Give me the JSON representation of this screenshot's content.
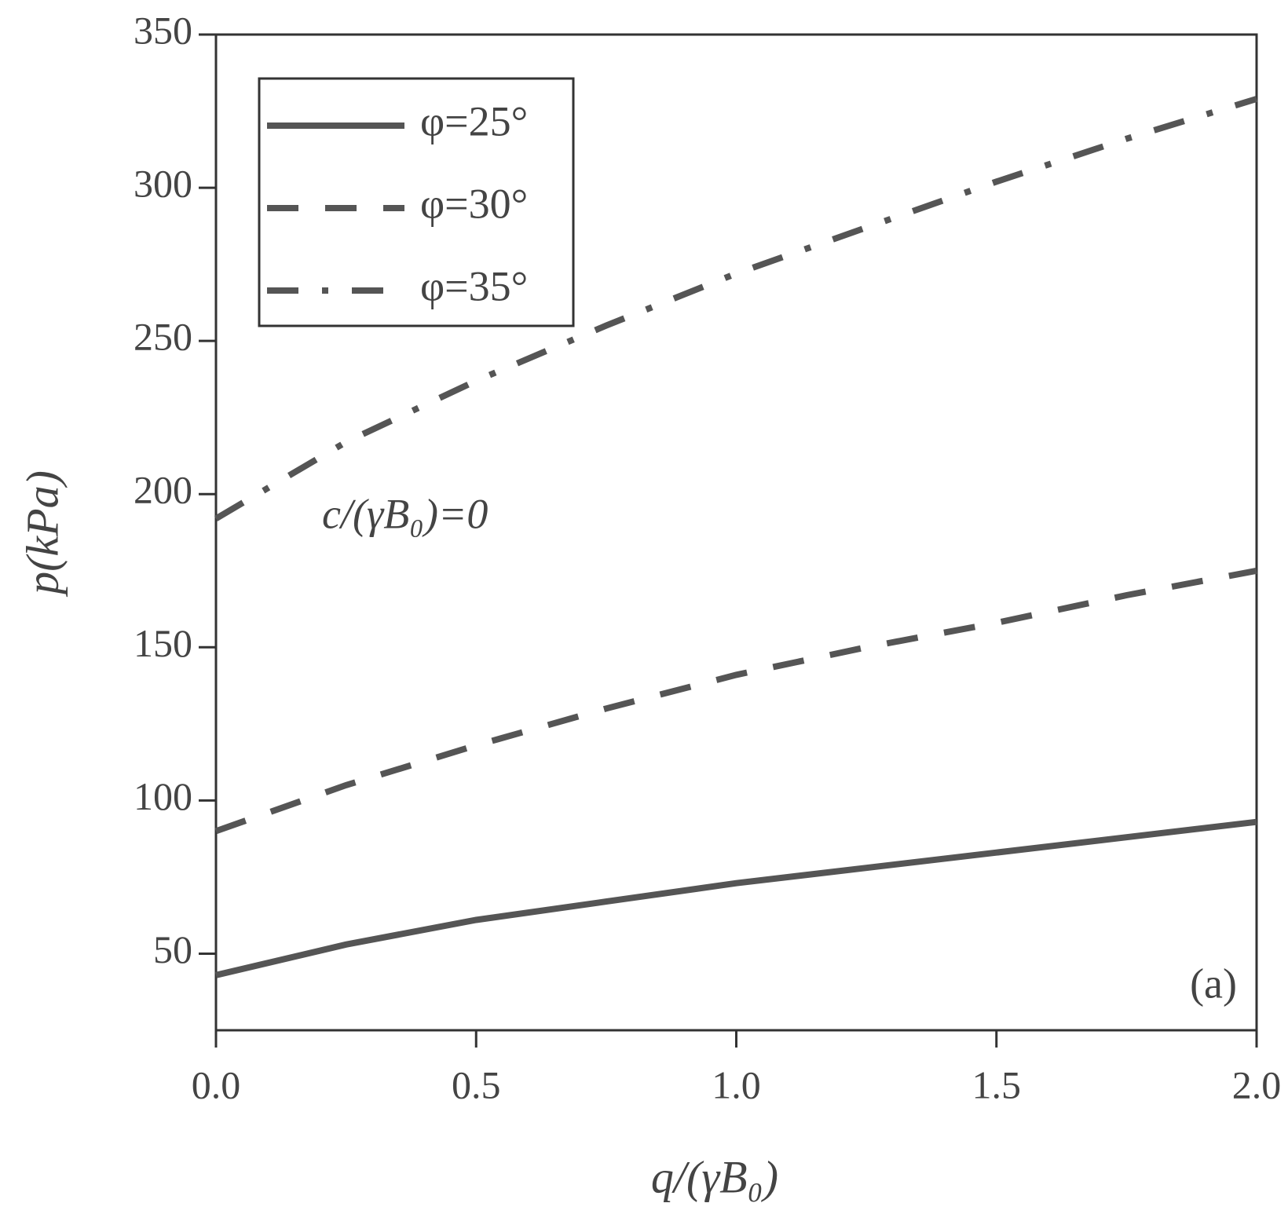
{
  "chart_data": {
    "type": "line",
    "x_label": "q/(γB₀)",
    "y_label": "p(kPa)",
    "annotations": [
      "c/(γB₀)=0",
      "(a)"
    ],
    "x": [
      0,
      0.25,
      0.5,
      0.75,
      1.0,
      1.25,
      1.5,
      1.75,
      2.0
    ],
    "series": [
      {
        "name": "φ=25°",
        "color": "#555555",
        "linestyle": "solid",
        "values": [
          43,
          53,
          61,
          67,
          73,
          78,
          83,
          88,
          93
        ]
      },
      {
        "name": "φ=30°",
        "color": "#555555",
        "linestyle": "dashed",
        "values": [
          90,
          105,
          118,
          130,
          141,
          150,
          158,
          167,
          175
        ]
      },
      {
        "name": "φ=35°",
        "color": "#555555",
        "linestyle": "dashdot",
        "values": [
          192,
          217,
          237,
          255,
          272,
          287,
          302,
          316,
          329
        ]
      }
    ],
    "xlim": [
      0,
      2.0
    ],
    "ylim": [
      25,
      350
    ],
    "xticks": [
      {
        "value": 0,
        "label": "0.0"
      },
      {
        "value": 0.5,
        "label": "0.5"
      },
      {
        "value": 1.0,
        "label": "1.0"
      },
      {
        "value": 1.5,
        "label": "1.5"
      },
      {
        "value": 2.0,
        "label": "2.0"
      }
    ],
    "yticks": [
      50,
      100,
      150,
      200,
      250,
      300,
      350
    ],
    "grid": false,
    "legend": "upper left"
  }
}
